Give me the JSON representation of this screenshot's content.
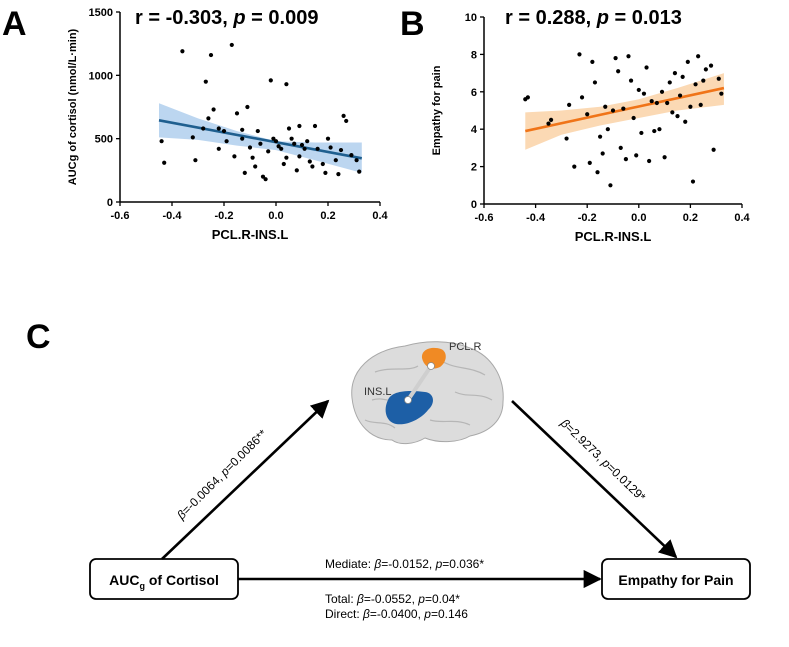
{
  "colors": {
    "panel_a_line": "#1f5f8f",
    "panel_a_band": "#bcd6f0",
    "panel_b_line": "#f07418",
    "panel_b_band": "#fbd9b4",
    "brain": "#d7d7d7",
    "pcl_region": "#f08a24",
    "ins_region": "#1d5fa6",
    "point": "#000000"
  },
  "panel_labels": {
    "a": "A",
    "b": "B",
    "c": "C"
  },
  "chart_data": [
    {
      "type": "scatter",
      "panel": "A",
      "stat": {
        "r_text": "r = -0.303, ",
        "p_symbol": "p",
        "p_text": " = 0.009"
      },
      "xlabel": "PCL.R-INS.L",
      "ylabel": "AUCg of cortisol (nmol/L·min)",
      "xlim": [
        -0.6,
        0.4
      ],
      "ylim": [
        0,
        1500
      ],
      "xticks": [
        -0.6,
        -0.4,
        -0.2,
        0.0,
        0.2,
        0.4
      ],
      "xtick_labels": [
        "-0.6",
        "-0.4",
        "-0.2",
        "0.0",
        "0.2",
        "0.4"
      ],
      "yticks": [
        0,
        500,
        1000,
        1500
      ],
      "ytick_labels": [
        "0",
        "500",
        "1000",
        "1500"
      ],
      "fit": {
        "x": [
          -0.45,
          0.33
        ],
        "y": [
          645,
          345
        ]
      },
      "band": {
        "x": [
          -0.45,
          -0.3,
          -0.15,
          0.0,
          0.15,
          0.33
        ],
        "upper": [
          780,
          660,
          560,
          480,
          470,
          470
        ],
        "lower": [
          510,
          490,
          445,
          410,
          330,
          230
        ]
      },
      "points": [
        [
          -0.44,
          480
        ],
        [
          -0.43,
          310
        ],
        [
          -0.36,
          1190
        ],
        [
          -0.32,
          510
        ],
        [
          -0.31,
          330
        ],
        [
          -0.28,
          580
        ],
        [
          -0.27,
          950
        ],
        [
          -0.26,
          660
        ],
        [
          -0.25,
          1160
        ],
        [
          -0.24,
          730
        ],
        [
          -0.22,
          580
        ],
        [
          -0.22,
          420
        ],
        [
          -0.2,
          560
        ],
        [
          -0.19,
          480
        ],
        [
          -0.17,
          1240
        ],
        [
          -0.16,
          360
        ],
        [
          -0.15,
          700
        ],
        [
          -0.13,
          570
        ],
        [
          -0.13,
          500
        ],
        [
          -0.12,
          230
        ],
        [
          -0.11,
          750
        ],
        [
          -0.1,
          430
        ],
        [
          -0.09,
          350
        ],
        [
          -0.08,
          280
        ],
        [
          -0.07,
          560
        ],
        [
          -0.06,
          460
        ],
        [
          -0.05,
          200
        ],
        [
          -0.04,
          180
        ],
        [
          -0.03,
          400
        ],
        [
          -0.02,
          960
        ],
        [
          -0.01,
          500
        ],
        [
          0.0,
          480
        ],
        [
          0.01,
          440
        ],
        [
          0.02,
          420
        ],
        [
          0.03,
          300
        ],
        [
          0.04,
          350
        ],
        [
          0.04,
          930
        ],
        [
          0.05,
          580
        ],
        [
          0.06,
          500
        ],
        [
          0.07,
          460
        ],
        [
          0.08,
          250
        ],
        [
          0.09,
          600
        ],
        [
          0.09,
          360
        ],
        [
          0.1,
          450
        ],
        [
          0.11,
          420
        ],
        [
          0.12,
          480
        ],
        [
          0.13,
          320
        ],
        [
          0.14,
          280
        ],
        [
          0.15,
          600
        ],
        [
          0.16,
          420
        ],
        [
          0.18,
          300
        ],
        [
          0.19,
          230
        ],
        [
          0.2,
          500
        ],
        [
          0.21,
          430
        ],
        [
          0.23,
          330
        ],
        [
          0.24,
          220
        ],
        [
          0.25,
          410
        ],
        [
          0.26,
          680
        ],
        [
          0.27,
          640
        ],
        [
          0.29,
          370
        ],
        [
          0.31,
          330
        ],
        [
          0.32,
          240
        ]
      ]
    },
    {
      "type": "scatter",
      "panel": "B",
      "stat": {
        "r_text": "r = 0.288, ",
        "p_symbol": "p",
        "p_text": " = 0.013"
      },
      "xlabel": "PCL.R-INS.L",
      "ylabel": "Empathy for pain",
      "xlim": [
        -0.6,
        0.4
      ],
      "ylim": [
        0,
        10
      ],
      "xticks": [
        -0.6,
        -0.4,
        -0.2,
        0.0,
        0.2,
        0.4
      ],
      "xtick_labels": [
        "-0.6",
        "-0.4",
        "-0.2",
        "0.0",
        "0.2",
        "0.4"
      ],
      "yticks": [
        0,
        2,
        4,
        6,
        8,
        10
      ],
      "ytick_labels": [
        "0",
        "2",
        "4",
        "6",
        "8",
        "10"
      ],
      "fit": {
        "x": [
          -0.44,
          0.33
        ],
        "y": [
          3.9,
          6.2
        ]
      },
      "band": {
        "x": [
          -0.44,
          -0.3,
          -0.15,
          0.0,
          0.15,
          0.33
        ],
        "upper": [
          4.9,
          5.0,
          5.2,
          5.6,
          6.2,
          7.0
        ],
        "lower": [
          2.9,
          3.7,
          4.2,
          4.6,
          5.0,
          5.3
        ]
      },
      "points": [
        [
          -0.44,
          5.6
        ],
        [
          -0.43,
          5.7
        ],
        [
          -0.35,
          4.3
        ],
        [
          -0.34,
          4.5
        ],
        [
          -0.28,
          3.5
        ],
        [
          -0.27,
          5.3
        ],
        [
          -0.25,
          2.0
        ],
        [
          -0.23,
          8.0
        ],
        [
          -0.22,
          5.7
        ],
        [
          -0.2,
          4.8
        ],
        [
          -0.19,
          2.2
        ],
        [
          -0.18,
          7.6
        ],
        [
          -0.17,
          6.5
        ],
        [
          -0.16,
          1.7
        ],
        [
          -0.15,
          3.6
        ],
        [
          -0.14,
          2.7
        ],
        [
          -0.13,
          5.2
        ],
        [
          -0.12,
          4.0
        ],
        [
          -0.11,
          1.0
        ],
        [
          -0.1,
          5.0
        ],
        [
          -0.09,
          7.8
        ],
        [
          -0.08,
          7.1
        ],
        [
          -0.07,
          3.0
        ],
        [
          -0.06,
          5.1
        ],
        [
          -0.05,
          2.4
        ],
        [
          -0.04,
          7.9
        ],
        [
          -0.03,
          6.6
        ],
        [
          -0.02,
          4.6
        ],
        [
          -0.01,
          2.6
        ],
        [
          0.0,
          6.1
        ],
        [
          0.01,
          3.8
        ],
        [
          0.02,
          5.9
        ],
        [
          0.03,
          7.3
        ],
        [
          0.04,
          2.3
        ],
        [
          0.05,
          5.5
        ],
        [
          0.06,
          3.9
        ],
        [
          0.07,
          5.4
        ],
        [
          0.08,
          4.0
        ],
        [
          0.09,
          6.0
        ],
        [
          0.1,
          2.5
        ],
        [
          0.11,
          5.4
        ],
        [
          0.12,
          6.5
        ],
        [
          0.13,
          4.9
        ],
        [
          0.14,
          7.0
        ],
        [
          0.15,
          4.7
        ],
        [
          0.16,
          5.8
        ],
        [
          0.17,
          6.8
        ],
        [
          0.18,
          4.4
        ],
        [
          0.19,
          7.6
        ],
        [
          0.2,
          5.2
        ],
        [
          0.21,
          1.2
        ],
        [
          0.22,
          6.4
        ],
        [
          0.23,
          7.9
        ],
        [
          0.24,
          5.3
        ],
        [
          0.25,
          6.6
        ],
        [
          0.26,
          7.2
        ],
        [
          0.28,
          7.4
        ],
        [
          0.29,
          2.9
        ],
        [
          0.31,
          6.7
        ],
        [
          0.32,
          5.9
        ]
      ]
    }
  ],
  "mediation": {
    "brain_labels": {
      "pcl": "PCL.R",
      "ins": "INS.L"
    },
    "left_box": {
      "main": "AUC",
      "sub": "g",
      "rest": " of Cortisol"
    },
    "right_box": {
      "label": "Empathy for Pain"
    },
    "path_a": {
      "beta": "β",
      "text1": "=-0.0064, ",
      "p": "p",
      "text2": "=0.0086**"
    },
    "path_b": {
      "beta": "β",
      "text1": "=2.9273, ",
      "p": "p",
      "text2": "=0.0129*"
    },
    "mediate": {
      "prefix": "Mediate: ",
      "beta": "β",
      "text1": "=-0.0152, ",
      "p": "p",
      "text2": "=0.036*"
    },
    "total": {
      "prefix": "Total: ",
      "beta": "β",
      "text1": "=-0.0552, ",
      "p": "p",
      "text2": "=0.04*"
    },
    "direct": {
      "prefix": "Direct: ",
      "beta": "β",
      "text1": "=-0.0400, ",
      "p": "p",
      "text2": "=0.146"
    }
  }
}
